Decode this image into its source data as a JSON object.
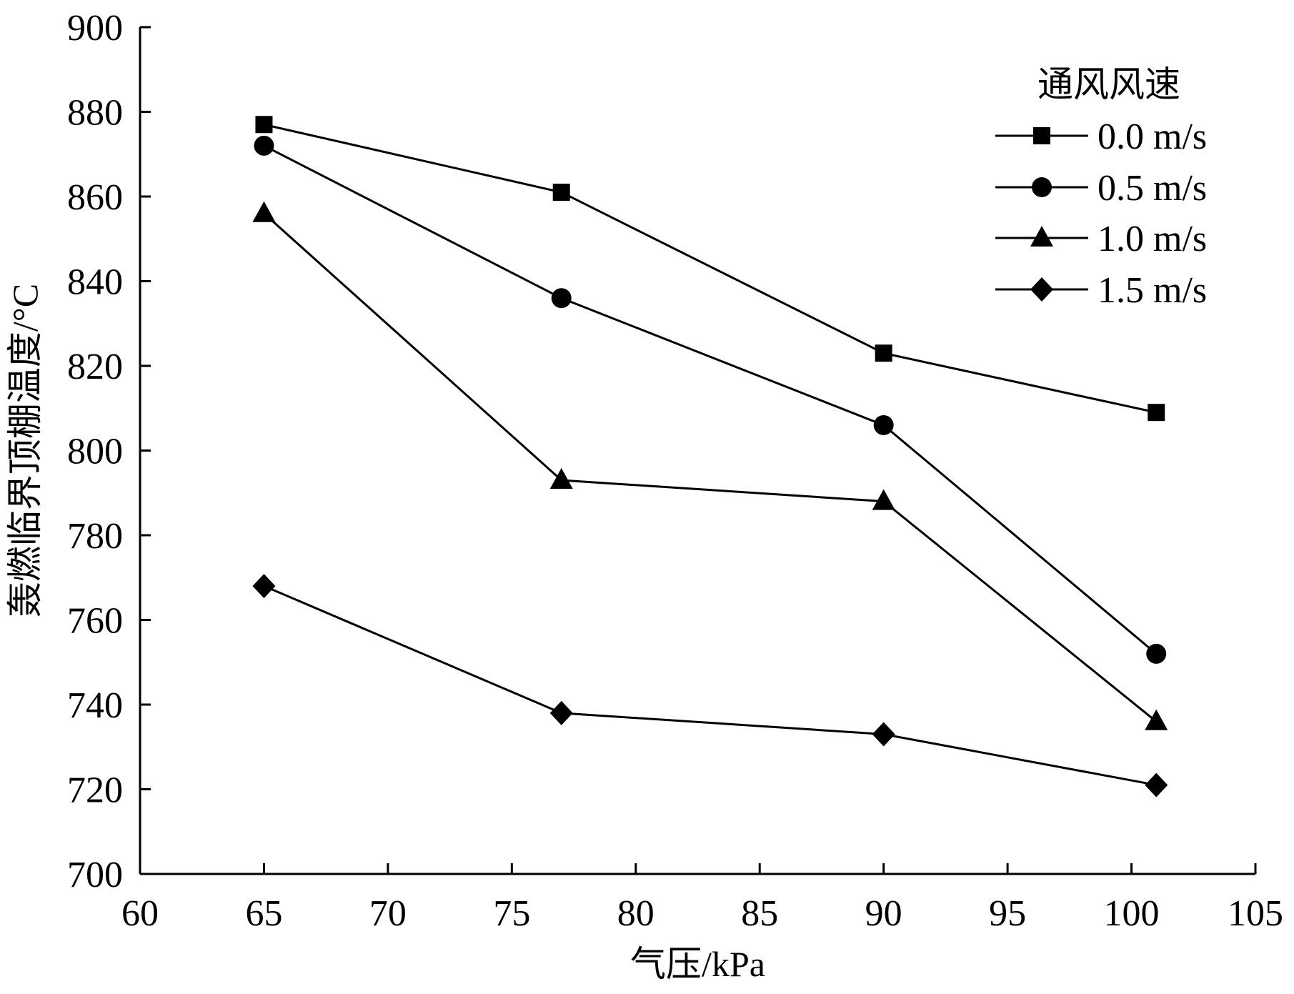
{
  "chart_data": {
    "type": "line",
    "xlabel": "气压/kPa",
    "ylabel": "轰燃临界顶棚温度/°C",
    "xlim": [
      60,
      105
    ],
    "ylim": [
      700,
      900
    ],
    "xticks": [
      60,
      65,
      70,
      75,
      80,
      85,
      90,
      95,
      100,
      105
    ],
    "yticks": [
      700,
      720,
      740,
      760,
      780,
      800,
      820,
      840,
      860,
      880,
      900
    ],
    "x": [
      65,
      77,
      90,
      101
    ],
    "legend_title": "通风风速",
    "legend_position": "top-right",
    "grid": false,
    "series": [
      {
        "name": "0.0 m/s",
        "marker": "square",
        "values": [
          877,
          861,
          823,
          809
        ]
      },
      {
        "name": "0.5 m/s",
        "marker": "circle",
        "values": [
          872,
          836,
          806,
          752
        ]
      },
      {
        "name": "1.0 m/s",
        "marker": "triangle",
        "values": [
          856,
          793,
          788,
          736
        ]
      },
      {
        "name": "1.5 m/s",
        "marker": "diamond",
        "values": [
          768,
          738,
          733,
          721
        ]
      }
    ],
    "colors": {
      "line": "#000000",
      "marker": "#000000",
      "axis": "#000000"
    }
  }
}
